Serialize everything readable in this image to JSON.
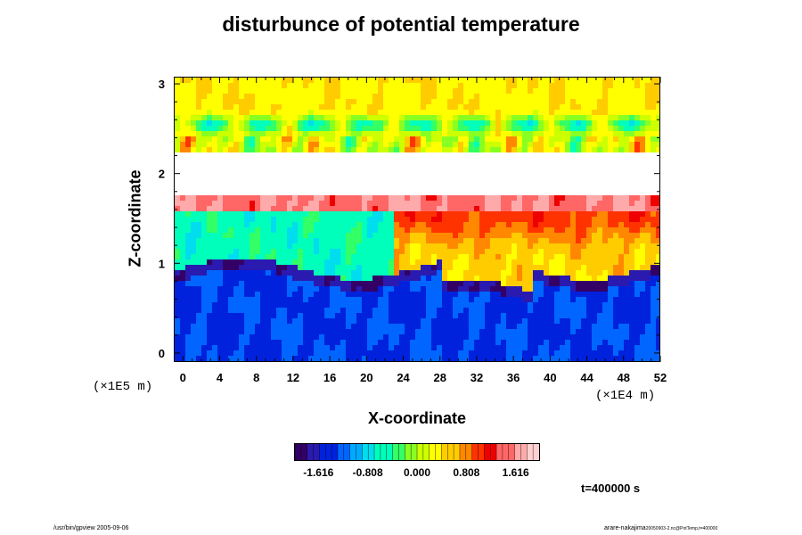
{
  "title": "disturbunce of potential temperature",
  "chart_data": {
    "type": "heatmap",
    "title": "disturbunce of potential temperature",
    "xlabel": "X-coordinate",
    "ylabel": "Z-coordinate",
    "x_unit": "(×1E4 m)",
    "y_unit": "(×1E5 m)",
    "xlim": [
      -1,
      52
    ],
    "ylim": [
      -0.1,
      3.08
    ],
    "x_ticks": [
      "0",
      "4",
      "8",
      "12",
      "16",
      "20",
      "24",
      "28",
      "32",
      "36",
      "40",
      "44",
      "48",
      "52"
    ],
    "y_ticks": [
      "0",
      "1",
      "2",
      "3"
    ],
    "colorbar": {
      "ticks": [
        "-1.616",
        "-0.808",
        "0.000",
        "0.808",
        "1.616"
      ],
      "range": [
        -2.0,
        2.0
      ],
      "colors": [
        "#330066",
        "#2a1ab0",
        "#0022dd",
        "#0066ff",
        "#00aaff",
        "#00ddee",
        "#00ffbb",
        "#33ff66",
        "#88ff22",
        "#ccff00",
        "#ffff00",
        "#ffcc00",
        "#ff8800",
        "#ff3300",
        "#ee0000",
        "#ff6666",
        "#ffaaaa",
        "#ffd0d0"
      ]
    },
    "annotation": "t=400000 s",
    "field_description_approx": {
      "lower_layer": "values near -1.3 to -1.6 below z≈0.95",
      "mid_layer": "values near -0.6 between z≈0.95 and 1.7, higher (~0.6 to 1.2) for x≈24-52",
      "white_band": "undefined / out-of-range between z≈1.75 and 2.25",
      "upper_layer": "values near 0.3 to 0.6 above z≈2.4"
    }
  },
  "footer": {
    "left": "/usr/bin/gpview 2005-09-06",
    "right_main": "arare-nakajima",
    "right_small": "20050903-2.nc@PotTemp,t=400000"
  }
}
